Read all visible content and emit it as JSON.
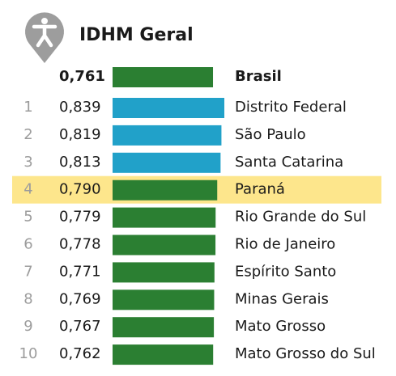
{
  "chart_data": {
    "type": "bar",
    "orientation": "horizontal",
    "title": "IDHM Geral",
    "categories": [
      "Brasil",
      "Distrito Federal",
      "São Paulo",
      "Santa Catarina",
      "Paraná",
      "Rio Grande do Sul",
      "Rio de Janeiro",
      "Espírito Santo",
      "Minas Gerais",
      "Mato Grosso",
      "Mato Grosso do Sul"
    ],
    "ranks": [
      null,
      1,
      2,
      3,
      4,
      5,
      6,
      7,
      8,
      9,
      10
    ],
    "values": [
      0.761,
      0.839,
      0.819,
      0.813,
      0.79,
      0.779,
      0.778,
      0.771,
      0.769,
      0.767,
      0.762
    ],
    "value_labels": [
      "0,761",
      "0,839",
      "0,819",
      "0,813",
      "0,790",
      "0,779",
      "0,778",
      "0,771",
      "0,769",
      "0,767",
      "0,762"
    ],
    "colors": [
      "#2b7f32",
      "#21a1c9",
      "#21a1c9",
      "#21a1c9",
      "#2b7f32",
      "#2b7f32",
      "#2b7f32",
      "#2b7f32",
      "#2b7f32",
      "#2b7f32",
      "#2b7f32"
    ],
    "highlight": 4,
    "highlight_color": "#fde68c",
    "xlim": [
      0.07,
      0.85
    ]
  }
}
